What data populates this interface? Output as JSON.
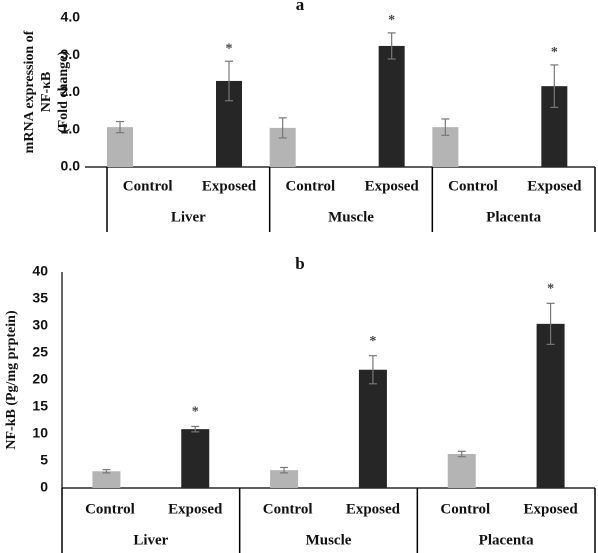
{
  "chart_data": [
    {
      "type": "bar",
      "title": "a",
      "ylabel": [
        "mRNA expression of",
        "NF-κB",
        "(Fold change)"
      ],
      "groups": [
        "Liver",
        "Muscle",
        "Placenta"
      ],
      "series": [
        {
          "name": "Control",
          "color": "#b4b4b4",
          "values": [
            1.07,
            1.05,
            1.07
          ],
          "errors": [
            0.15,
            0.27,
            0.22
          ]
        },
        {
          "name": "Exposed",
          "color": "#262626",
          "values": [
            2.31,
            3.25,
            2.17
          ],
          "errors": [
            0.53,
            0.35,
            0.57
          ],
          "annotations": [
            "*",
            "*",
            "*"
          ]
        }
      ],
      "ylim": [
        0,
        4
      ],
      "yticks": [
        {
          "value": 0,
          "label": "0.0"
        },
        {
          "value": 1,
          "label": "1.0"
        },
        {
          "value": 2,
          "label": "2.0"
        },
        {
          "value": 3,
          "label": "3.0"
        },
        {
          "value": 4,
          "label": "4.0"
        }
      ]
    },
    {
      "type": "bar",
      "title": "b",
      "ylabel": [
        "NF-kB (Pg/mg prptein)"
      ],
      "groups": [
        "Liver",
        "Muscle",
        "Placenta"
      ],
      "series": [
        {
          "name": "Control",
          "color": "#b4b4b4",
          "values": [
            3.1,
            3.3,
            6.3
          ],
          "errors": [
            0.3,
            0.5,
            0.5
          ]
        },
        {
          "name": "Exposed",
          "color": "#262626",
          "values": [
            10.9,
            21.9,
            30.4
          ],
          "errors": [
            0.5,
            2.6,
            3.8
          ],
          "annotations": [
            "*",
            "*",
            "*"
          ]
        }
      ],
      "ylim": [
        0,
        40
      ],
      "yticks": [
        0,
        5,
        10,
        15,
        20,
        25,
        30,
        35,
        40
      ]
    }
  ]
}
